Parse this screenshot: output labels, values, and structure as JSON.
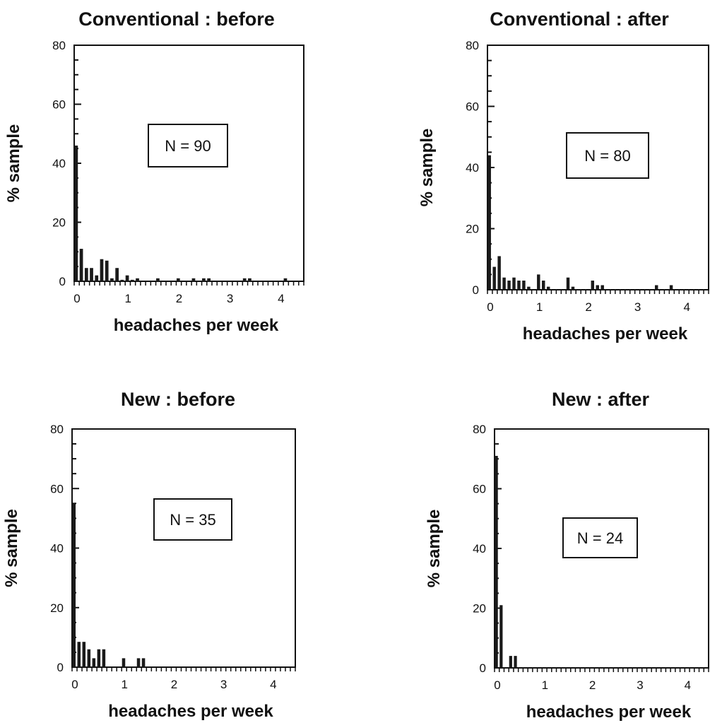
{
  "chart_data": [
    {
      "id": "conv-before",
      "type": "bar",
      "title": "Conventional : before",
      "xlabel": "headaches per week",
      "ylabel": "% sample",
      "annotation": "N = 90",
      "bin_width": 0.1,
      "xlim": [
        0,
        4.5
      ],
      "ylim": [
        0,
        80
      ],
      "x_ticks": [
        "0",
        "1",
        "2",
        "3",
        "4"
      ],
      "y_ticks": [
        "0",
        "20",
        "40",
        "60",
        "80"
      ],
      "x": [
        0,
        0.1,
        0.2,
        0.3,
        0.4,
        0.5,
        0.6,
        0.7,
        0.8,
        0.9,
        1.0,
        1.1,
        1.2,
        1.3,
        1.4,
        1.5,
        1.6,
        1.7,
        1.8,
        1.9,
        2.0,
        2.1,
        2.2,
        2.3,
        2.4,
        2.5,
        2.6,
        2.7,
        2.8,
        2.9,
        3.0,
        3.1,
        3.2,
        3.3,
        3.4,
        3.5,
        3.6,
        3.7,
        3.8,
        3.9,
        4.0,
        4.1,
        4.2,
        4.3,
        4.4
      ],
      "values": [
        46,
        11,
        4.5,
        4.5,
        2,
        7.5,
        7,
        1,
        4.5,
        0.5,
        2,
        0.5,
        1,
        0,
        0,
        0,
        1,
        0,
        0,
        0,
        1,
        0,
        0,
        1,
        0,
        1,
        1,
        0,
        0,
        0,
        0,
        0,
        0,
        1,
        1,
        0,
        0,
        0,
        0,
        0,
        0,
        1,
        0,
        0,
        0
      ]
    },
    {
      "id": "conv-after",
      "type": "bar",
      "title": "Conventional : after",
      "xlabel": "headaches per week",
      "ylabel": "% sample",
      "annotation": "N = 80",
      "bin_width": 0.1,
      "xlim": [
        0,
        4.5
      ],
      "ylim": [
        0,
        80
      ],
      "x_ticks": [
        "0",
        "1",
        "2",
        "3",
        "4"
      ],
      "y_ticks": [
        "0",
        "20",
        "40",
        "60",
        "80"
      ],
      "x": [
        0,
        0.1,
        0.2,
        0.3,
        0.4,
        0.5,
        0.6,
        0.7,
        0.8,
        0.9,
        1.0,
        1.1,
        1.2,
        1.3,
        1.4,
        1.5,
        1.6,
        1.7,
        1.8,
        1.9,
        2.0,
        2.1,
        2.2,
        2.3,
        2.4,
        2.5,
        2.6,
        2.7,
        2.8,
        2.9,
        3.0,
        3.1,
        3.2,
        3.3,
        3.4,
        3.5,
        3.6,
        3.7,
        3.8,
        3.9,
        4.0,
        4.1,
        4.2,
        4.3,
        4.4
      ],
      "values": [
        44,
        7.5,
        11,
        4,
        3,
        4,
        3,
        3,
        1,
        0,
        5,
        3,
        1,
        0,
        0,
        0,
        4,
        1,
        0,
        0,
        0,
        3,
        1.5,
        1.5,
        0,
        0,
        0,
        0,
        0,
        0,
        0,
        0,
        0,
        0,
        1.5,
        0,
        0,
        1.5,
        0,
        0,
        0,
        0,
        0,
        0,
        0
      ]
    },
    {
      "id": "new-before",
      "type": "bar",
      "title": "New : before",
      "xlabel": "headaches per week",
      "ylabel": "% sample",
      "annotation": "N = 35",
      "bin_width": 0.1,
      "xlim": [
        0,
        4.5
      ],
      "ylim": [
        0,
        80
      ],
      "x_ticks": [
        "0",
        "1",
        "2",
        "3",
        "4"
      ],
      "y_ticks": [
        "0",
        "20",
        "40",
        "60",
        "80"
      ],
      "x": [
        0,
        0.1,
        0.2,
        0.3,
        0.4,
        0.5,
        0.6,
        0.7,
        0.8,
        0.9,
        1.0,
        1.1,
        1.2,
        1.3,
        1.4,
        1.5,
        1.6,
        1.7,
        1.8,
        1.9,
        2.0,
        2.1,
        2.2,
        2.3,
        2.4,
        2.5,
        2.6,
        2.7,
        2.8,
        2.9,
        3.0,
        3.1,
        3.2,
        3.3,
        3.4,
        3.5,
        3.6,
        3.7,
        3.8,
        3.9,
        4.0,
        4.1,
        4.2,
        4.3,
        4.4
      ],
      "values": [
        55,
        8.5,
        8.5,
        6,
        3,
        6,
        6,
        0,
        0,
        0,
        3,
        0,
        0,
        3,
        3,
        0,
        0,
        0,
        0,
        0,
        0,
        0,
        0,
        0,
        0,
        0,
        0,
        0,
        0,
        0,
        0,
        0,
        0,
        0,
        0,
        0,
        0,
        0,
        0,
        0,
        0,
        0,
        0,
        0,
        0
      ]
    },
    {
      "id": "new-after",
      "type": "bar",
      "title": "New : after",
      "xlabel": "headaches per week",
      "ylabel": "% sample",
      "annotation": "N = 24",
      "bin_width": 0.1,
      "xlim": [
        0,
        4.5
      ],
      "ylim": [
        0,
        80
      ],
      "x_ticks": [
        "0",
        "1",
        "2",
        "3",
        "4"
      ],
      "y_ticks": [
        "0",
        "20",
        "40",
        "60",
        "80"
      ],
      "x": [
        0,
        0.1,
        0.2,
        0.3,
        0.4,
        0.5,
        0.6,
        0.7,
        0.8,
        0.9,
        1.0,
        1.1,
        1.2,
        1.3,
        1.4,
        1.5,
        1.6,
        1.7,
        1.8,
        1.9,
        2.0,
        2.1,
        2.2,
        2.3,
        2.4,
        2.5,
        2.6,
        2.7,
        2.8,
        2.9,
        3.0,
        3.1,
        3.2,
        3.3,
        3.4,
        3.5,
        3.6,
        3.7,
        3.8,
        3.9,
        4.0,
        4.1,
        4.2,
        4.3,
        4.4
      ],
      "values": [
        71,
        21,
        0,
        4,
        4,
        0,
        0,
        0,
        0,
        0,
        0,
        0,
        0,
        0,
        0,
        0,
        0,
        0,
        0,
        0,
        0,
        0,
        0,
        0,
        0,
        0,
        0,
        0,
        0,
        0,
        0,
        0,
        0,
        0,
        0,
        0,
        0,
        0,
        0,
        0,
        0,
        0,
        0,
        0,
        0
      ]
    }
  ]
}
